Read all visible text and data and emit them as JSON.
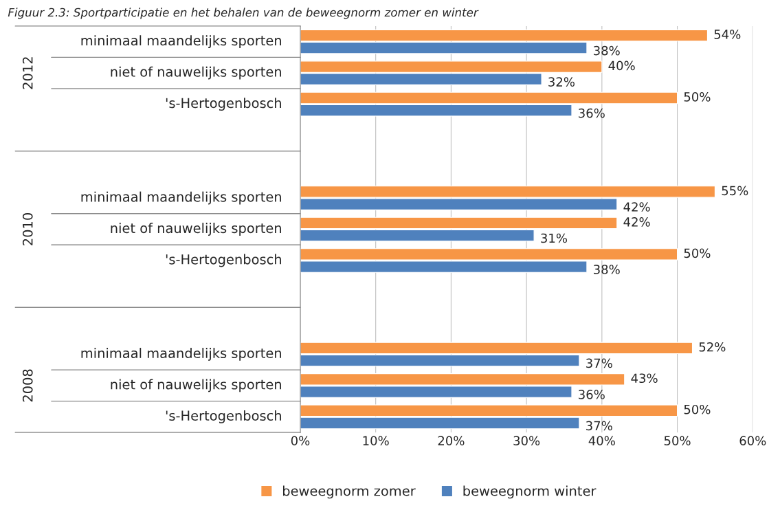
{
  "chart_data": {
    "type": "bar",
    "orientation": "horizontal",
    "title": "Figuur 2.3: Sportparticipatie en het behalen van de beweegnorm zomer en winter",
    "categories": [
      "minimaal maandelijks sporten",
      "niet of nauwelijks sporten",
      "'s-Hertogenbosch",
      null,
      null,
      "minimaal maandelijks sporten",
      "niet of nauwelijks sporten",
      "'s-Hertogenbosch",
      null,
      null,
      "minimaal maandelijks sporten",
      "niet of nauwelijks sporten",
      "'s-Hertogenbosch"
    ],
    "annotations": [
      "2012",
      "2010",
      "2008"
    ],
    "series": [
      {
        "name": "beweegnorm zomer",
        "color": "#f79646",
        "values": [
          54,
          40,
          50,
          null,
          null,
          55,
          42,
          50,
          null,
          null,
          52,
          43,
          50
        ],
        "value_labels": [
          "54%",
          "40%",
          "50%",
          null,
          null,
          "55%",
          "42%",
          "50%",
          null,
          null,
          "52%",
          "43%",
          "50%"
        ]
      },
      {
        "name": "beweegnorm winter",
        "color": "#4f81bd",
        "values": [
          38,
          32,
          36,
          null,
          null,
          42,
          31,
          38,
          null,
          null,
          37,
          36,
          37
        ],
        "value_labels": [
          "38%",
          "32%",
          "36%",
          null,
          null,
          "42%",
          "31%",
          "38%",
          null,
          null,
          "37%",
          "36%",
          "37%"
        ]
      }
    ],
    "xlim": [
      0,
      60
    ],
    "xticks": [
      {
        "value": 0,
        "label": "0%"
      },
      {
        "value": 10,
        "label": "10%"
      },
      {
        "value": 20,
        "label": "20%"
      },
      {
        "value": 30,
        "label": "30%"
      },
      {
        "value": 40,
        "label": "40%"
      },
      {
        "value": 50,
        "label": "50%"
      },
      {
        "value": 60,
        "label": "60%"
      }
    ],
    "grid": "x",
    "legend": "bottom"
  }
}
